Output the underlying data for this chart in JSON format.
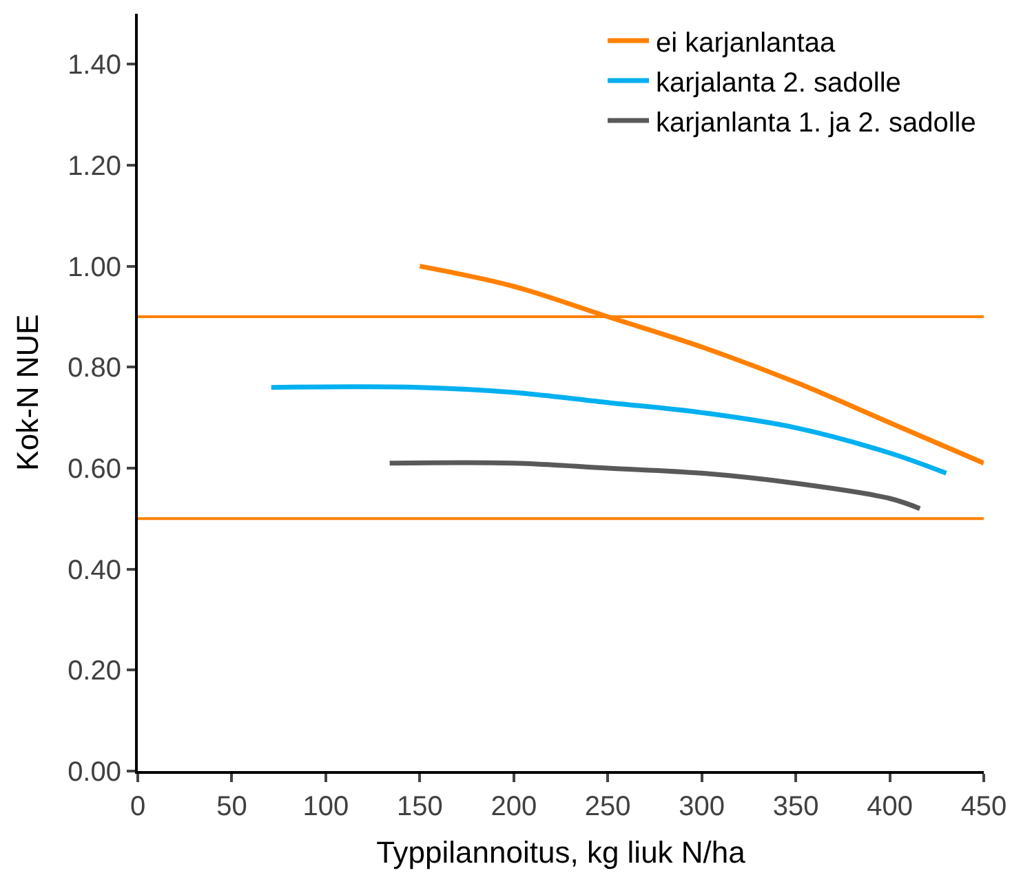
{
  "chart_data": {
    "type": "line",
    "xlabel": "Typpilannoitus, kg liuk N/ha",
    "ylabel": "Kok-N NUE",
    "xlim": [
      0,
      450
    ],
    "xticks": [
      0,
      50,
      100,
      150,
      200,
      250,
      300,
      350,
      400,
      450
    ],
    "ylim": [
      0,
      1.5
    ],
    "yticks": [
      {
        "value": 0,
        "label": "0.00"
      },
      {
        "value": 0.2,
        "label": "0.20"
      },
      {
        "value": 0.4,
        "label": "0.40"
      },
      {
        "value": 0.6,
        "label": "0.60"
      },
      {
        "value": 0.8,
        "label": "0.80"
      },
      {
        "value": 1.0,
        "label": "1.00"
      },
      {
        "value": 1.2,
        "label": "1.20"
      },
      {
        "value": 1.4,
        "label": "1.40"
      }
    ],
    "legend": "top right",
    "marker": "none",
    "line_style": "solid",
    "series": [
      {
        "name": "ei karjanlantaa",
        "color": "#ff8000",
        "x": [
          150,
          200,
          250,
          300,
          350,
          400,
          450
        ],
        "values": [
          1.0,
          0.96,
          0.9,
          0.84,
          0.77,
          0.69,
          0.61
        ]
      },
      {
        "name": "karjalanta 2. sadolle",
        "color": "#00b0f0",
        "x": [
          71,
          150,
          200,
          250,
          300,
          350,
          400,
          430
        ],
        "values": [
          0.76,
          0.76,
          0.75,
          0.73,
          0.71,
          0.68,
          0.63,
          0.59
        ]
      },
      {
        "name": "karjanlanta 1. ja 2. sadolle",
        "color": "#595959",
        "x": [
          134,
          200,
          250,
          300,
          350,
          400,
          416
        ],
        "values": [
          0.61,
          0.61,
          0.6,
          0.59,
          0.57,
          0.54,
          0.52
        ]
      }
    ],
    "ref_lines": [
      {
        "axis": "y",
        "value": 0.9,
        "label": null,
        "color": "#ff8000"
      },
      {
        "axis": "y",
        "value": 0.5,
        "label": null,
        "color": "#ff8000"
      }
    ]
  }
}
